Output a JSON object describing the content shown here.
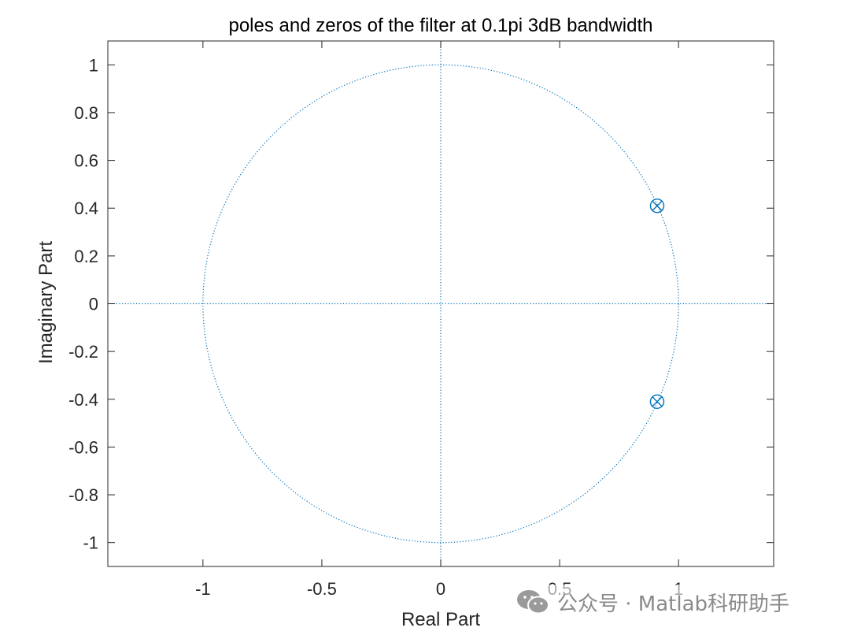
{
  "chart_data": {
    "type": "scatter",
    "title": "poles and zeros of the filter at 0.1pi 3dB bandwidth",
    "xlabel": "Real Part",
    "ylabel": "Imaginary Part",
    "xlim": [
      -1.4,
      1.4
    ],
    "ylim": [
      -1.1,
      1.1
    ],
    "xticks": [
      -1,
      -0.5,
      0,
      0.5,
      1
    ],
    "xtick_labels": [
      "-1",
      "-0.5",
      "0",
      "0.5",
      "1"
    ],
    "yticks": [
      1,
      0.8,
      0.6,
      0.4,
      0.2,
      0,
      -0.2,
      -0.4,
      -0.6,
      -0.8,
      -1
    ],
    "ytick_labels": [
      "1",
      "0.8",
      "0.6",
      "0.4",
      "0.2",
      "0",
      "-0.2",
      "-0.4",
      "-0.6",
      "-0.8",
      "-1"
    ],
    "grid": false,
    "unit_circle": true,
    "series": [
      {
        "marker": "o",
        "x": [
          0.91,
          0.91
        ],
        "y": [
          0.41,
          -0.41
        ]
      },
      {
        "marker": "x",
        "x": [
          0.91,
          0.91
        ],
        "y": [
          0.41,
          -0.41
        ]
      }
    ],
    "color": "#0072BD"
  },
  "watermark": {
    "icon": "wechat-icon",
    "text": "公众号 · Matlab科研助手"
  }
}
